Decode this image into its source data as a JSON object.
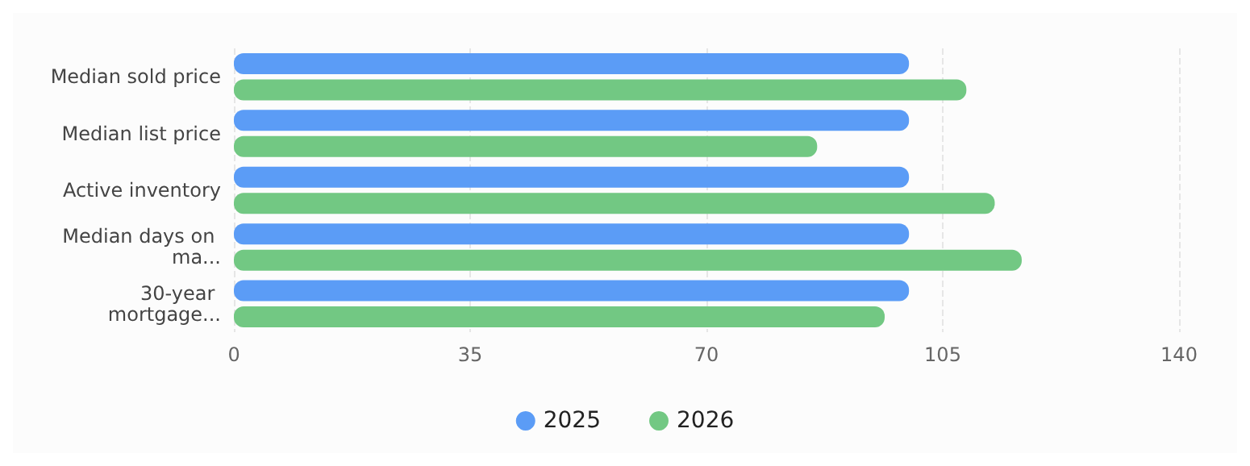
{
  "chart_data": {
    "type": "bar",
    "orientation": "horizontal",
    "categories": [
      "Median sold price",
      "Median list price",
      "Active inventory",
      "Median days on ma...",
      "30-year mortgage..."
    ],
    "series": [
      {
        "name": "2025",
        "color": "#5b9cf6",
        "values": [
          100,
          100,
          100,
          100,
          100
        ]
      },
      {
        "name": "2026",
        "color": "#72c883",
        "values": [
          108.5,
          86.4,
          112.7,
          116.7,
          96.4
        ]
      }
    ],
    "xlim": [
      0,
      140
    ],
    "xticks": [
      0,
      35,
      70,
      105,
      140
    ],
    "grid": "x",
    "legend": "bottom"
  }
}
